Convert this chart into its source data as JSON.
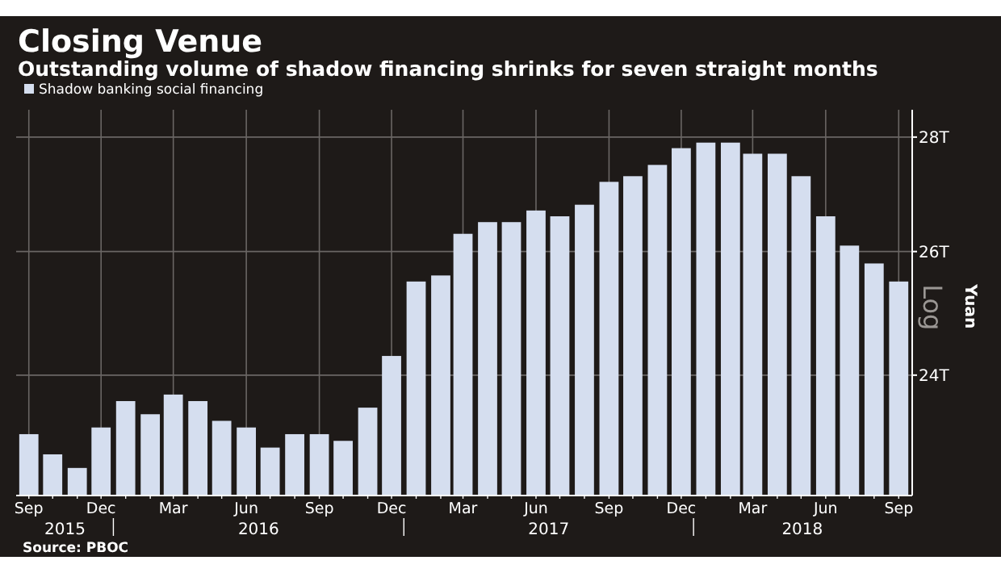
{
  "chart_data": {
    "type": "bar",
    "title": "Closing Venue",
    "subtitle": "Outstanding volume of shadow financing shrinks for seven straight months",
    "ylabel": "Yuan",
    "x": [
      "2015-09",
      "2015-10",
      "2015-11",
      "2015-12",
      "2016-01",
      "2016-02",
      "2016-03",
      "2016-04",
      "2016-05",
      "2016-06",
      "2016-07",
      "2016-08",
      "2016-09",
      "2016-10",
      "2016-11",
      "2016-12",
      "2017-01",
      "2017-02",
      "2017-03",
      "2017-04",
      "2017-05",
      "2017-06",
      "2017-07",
      "2017-08",
      "2017-09",
      "2017-10",
      "2017-11",
      "2017-12",
      "2018-01",
      "2018-02",
      "2018-03",
      "2018-04",
      "2018-05",
      "2018-06",
      "2018-07",
      "2018-08",
      "2018-09"
    ],
    "series": [
      {
        "name": "Shadow banking social financing",
        "color": "#d5deef",
        "values": [
          23.1,
          22.8,
          22.6,
          23.2,
          23.6,
          23.4,
          23.7,
          23.6,
          23.3,
          23.2,
          22.9,
          23.1,
          23.1,
          23.0,
          23.5,
          24.3,
          25.5,
          25.6,
          26.3,
          26.5,
          26.5,
          26.7,
          26.6,
          26.8,
          27.2,
          27.3,
          27.5,
          27.8,
          27.9,
          27.9,
          27.7,
          27.7,
          27.3,
          26.6,
          26.1,
          25.8,
          25.5
        ]
      }
    ],
    "ylim": [
      22.2,
      28.5
    ],
    "yticks": [
      {
        "value": 24,
        "label": "24T"
      },
      {
        "value": 26,
        "label": "26T"
      },
      {
        "value": 28,
        "label": "28T"
      }
    ],
    "log": "y",
    "xticks": [
      {
        "value": "2015-09",
        "label": "Sep"
      },
      {
        "value": "2015-12",
        "label": "Dec"
      },
      {
        "value": "2016-03",
        "label": "Mar"
      },
      {
        "value": "2016-06",
        "label": "Jun"
      },
      {
        "value": "2016-09",
        "label": "Sep"
      },
      {
        "value": "2016-12",
        "label": "Dec"
      },
      {
        "value": "2017-03",
        "label": "Mar"
      },
      {
        "value": "2017-06",
        "label": "Jun"
      },
      {
        "value": "2017-09",
        "label": "Sep"
      },
      {
        "value": "2017-12",
        "label": "Dec"
      },
      {
        "value": "2018-03",
        "label": "Mar"
      },
      {
        "value": "2018-06",
        "label": "Jun"
      },
      {
        "value": "2018-09",
        "label": "Sep"
      }
    ],
    "xlim": [
      "2015-08-16",
      "2018-09-18"
    ],
    "grid": true,
    "legend": "top left",
    "annotations": [
      "Source: PBOC",
      "Log",
      "2015",
      "2016",
      "2017",
      "2018"
    ]
  }
}
